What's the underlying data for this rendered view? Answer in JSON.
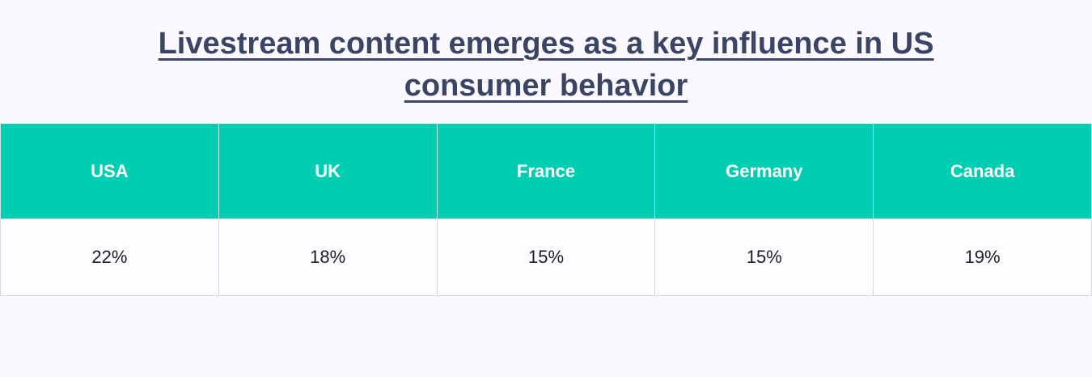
{
  "title": {
    "line1": "Livestream content emerges as a key influence in US",
    "line2": "consumer behavior"
  },
  "table": {
    "headers": [
      "USA",
      "UK",
      "France",
      "Germany",
      "Canada"
    ],
    "values": [
      "22%",
      "18%",
      "15%",
      "15%",
      "19%"
    ]
  },
  "colors": {
    "header_bg": "#00ceb3",
    "title_text": "#3a4563",
    "page_bg": "#fbf9ff"
  }
}
